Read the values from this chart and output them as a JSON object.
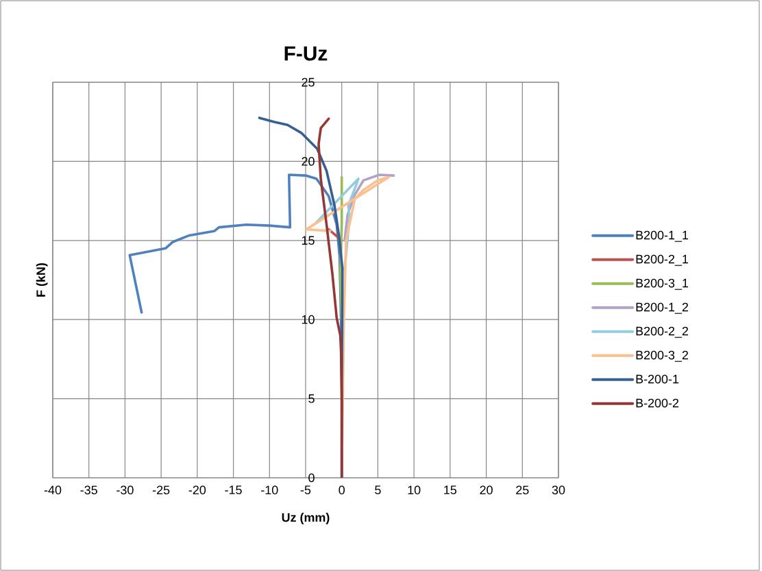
{
  "chart_data": {
    "type": "line",
    "title": "F-Uz",
    "xlabel": "Uz (mm)",
    "ylabel": "F (kN)",
    "xlim": [
      -40,
      30
    ],
    "xticks": [
      -40,
      -35,
      -30,
      -25,
      -20,
      -15,
      -10,
      -5,
      0,
      5,
      10,
      15,
      20,
      25,
      30
    ],
    "ylim": [
      0,
      25
    ],
    "yticks": [
      0,
      5,
      10,
      15,
      20,
      25
    ],
    "grid": true,
    "legend": "right",
    "marker": "none",
    "line_style": "solid",
    "series": [
      {
        "name": "B200-1_1",
        "color": "#4f81bd",
        "x": [
          0,
          0,
          -0.1,
          -0.3,
          -0.7,
          -1.8,
          -3.5,
          -4.9,
          -7.3,
          -7.15,
          -10,
          -13.2,
          -17,
          -17.6,
          -21.1,
          -23.4,
          -24.4,
          -29.35,
          -27.7
        ],
        "values": [
          0,
          5,
          10,
          14,
          16,
          17.8,
          18.9,
          19.1,
          19.15,
          15.83,
          15.94,
          16,
          15.83,
          15.6,
          15.32,
          14.9,
          14.5,
          14.07,
          10.45
        ]
      },
      {
        "name": "B200-2_1",
        "color": "#c0504d",
        "x": [
          0,
          -1.8
        ],
        "values": [
          15,
          15.7
        ]
      },
      {
        "name": "B200-3_1",
        "color": "#9bbb59",
        "x": [
          0,
          -0.2,
          0,
          0
        ],
        "values": [
          10,
          13,
          16,
          19
        ]
      },
      {
        "name": "B200-1_2",
        "color": "#b3a2c7",
        "x": [
          0.4,
          0.8,
          1.7,
          3,
          5.2,
          7.2
        ],
        "values": [
          15,
          16.6,
          17.8,
          18.8,
          19.15,
          19.1
        ]
      },
      {
        "name": "B200-2_2",
        "color": "#93cddd",
        "x": [
          0.4,
          1.1,
          0.9,
          2.0,
          2.3,
          -3.6,
          -2
        ],
        "values": [
          13.2,
          16.5,
          17.2,
          18.5,
          18.9,
          16.1,
          16.6
        ]
      },
      {
        "name": "B200-3_2",
        "color": "#fac090",
        "x": [
          0,
          0.3,
          0.6,
          1.2,
          1.8,
          3,
          5,
          6.5,
          -4.9,
          -1.6
        ],
        "values": [
          0,
          10,
          15,
          16.3,
          17.6,
          18.2,
          18.8,
          19.0,
          15.7,
          15.6
        ]
      },
      {
        "name": "B-200-1",
        "color": "#376092",
        "x": [
          0,
          0,
          0.1,
          -0.35,
          -1.0,
          -2.1,
          -3.4,
          -5.6,
          -7.5,
          -9.4,
          -11.4
        ],
        "values": [
          0,
          5,
          13.2,
          15.2,
          17.2,
          19.4,
          20.8,
          21.8,
          22.3,
          22.5,
          22.75
        ]
      },
      {
        "name": "B-200-2",
        "color": "#953735",
        "x": [
          0,
          0,
          -0.1,
          -0.2,
          -0.7,
          -1.3,
          -2.1,
          -2.9,
          -3.2,
          -2.9,
          -1.8
        ],
        "values": [
          0,
          5,
          8,
          9,
          10.1,
          12.9,
          16,
          18.9,
          21.1,
          22.1,
          22.7
        ]
      }
    ]
  }
}
